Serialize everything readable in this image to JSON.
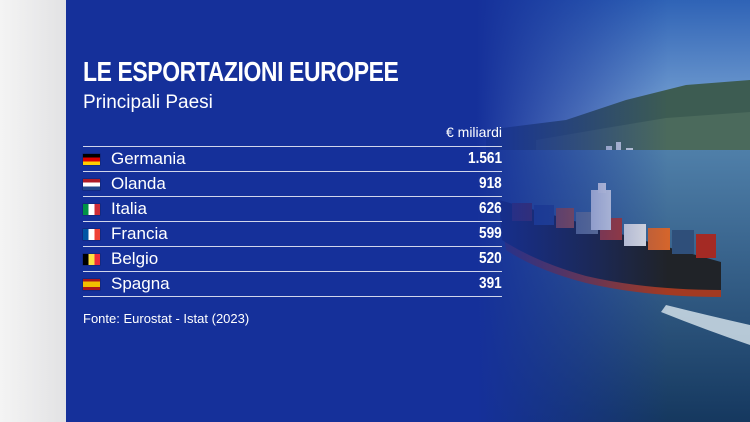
{
  "chart_data": {
    "type": "table",
    "title": "LE ESPORTAZIONI EUROPEE",
    "subtitle": "Principali Paesi",
    "unit": "€ miliardi",
    "rows": [
      {
        "country": "Germania",
        "value": "1.561",
        "flag": [
          "#000000",
          "#dd0000",
          "#ffce00"
        ],
        "flag_dir": "h"
      },
      {
        "country": "Olanda",
        "value": "918",
        "flag": [
          "#ae1c28",
          "#ffffff",
          "#21468b"
        ],
        "flag_dir": "h"
      },
      {
        "country": "Italia",
        "value": "626",
        "flag": [
          "#009246",
          "#ffffff",
          "#ce2b37"
        ],
        "flag_dir": "v"
      },
      {
        "country": "Francia",
        "value": "599",
        "flag": [
          "#0055a4",
          "#ffffff",
          "#ef4135"
        ],
        "flag_dir": "v"
      },
      {
        "country": "Belgio",
        "value": "520",
        "flag": [
          "#000000",
          "#fae042",
          "#ed2939"
        ],
        "flag_dir": "v"
      },
      {
        "country": "Spagna",
        "value": "391",
        "flag": [
          "#aa151b",
          "#f1bf00",
          "#aa151b"
        ],
        "flag_dir": "h-spain"
      }
    ],
    "source": "Fonte: Eurostat - Istat (2023)"
  }
}
